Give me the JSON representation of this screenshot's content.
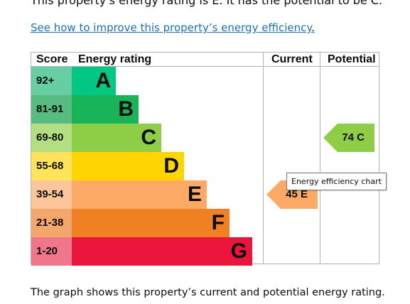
{
  "top_text": "This property's energy rating is E. It has the potential to be C.",
  "improve_link": {
    "label": "See how to improve this property’s energy efficiency",
    "trail": "."
  },
  "chart": {
    "headers": {
      "score": "Score",
      "rating": "Energy rating",
      "current": "Current",
      "potential": "Potential"
    },
    "bands": [
      {
        "score": "92+",
        "letter": "A",
        "bar_color": "#00c781",
        "score_color": "#67cda2"
      },
      {
        "score": "81-91",
        "letter": "B",
        "bar_color": "#19b459",
        "score_color": "#56bc7f"
      },
      {
        "score": "69-80",
        "letter": "C",
        "bar_color": "#8dce46",
        "score_color": "#b3de82"
      },
      {
        "score": "55-68",
        "letter": "D",
        "bar_color": "#ffd500",
        "score_color": "#ffe35a"
      },
      {
        "score": "39-54",
        "letter": "E",
        "bar_color": "#fcaa65",
        "score_color": "#fdc69a"
      },
      {
        "score": "21-38",
        "letter": "F",
        "bar_color": "#ef8023",
        "score_color": "#f4a76a"
      },
      {
        "score": "1-20",
        "letter": "G",
        "bar_color": "#e9153b",
        "score_color": "#f0768c"
      }
    ],
    "current": {
      "label": "45 E",
      "band_index": 4,
      "color": "#fcaa65"
    },
    "potential": {
      "label": "74 C",
      "band_index": 2,
      "color": "#8dce46"
    }
  },
  "tooltip": "Energy efficiency chart",
  "caption": "The graph shows this property’s current and potential energy rating."
}
